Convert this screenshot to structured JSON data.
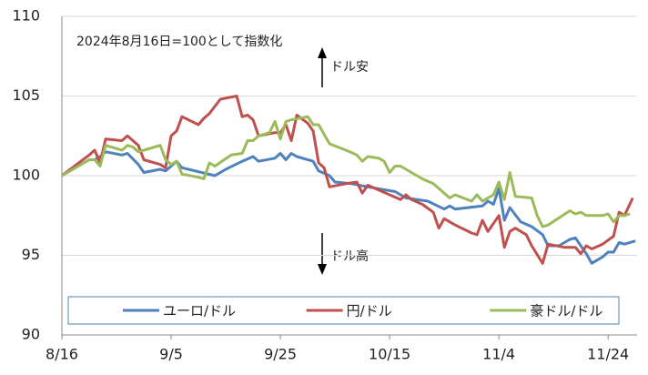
{
  "chart_data": {
    "type": "line",
    "annotations": [
      "2024年8月16日=100として指数化",
      "ドル安",
      "ドル高"
    ],
    "ylim": [
      90,
      110
    ],
    "yticks": [
      90,
      95,
      100,
      105,
      110
    ],
    "xlim": [
      0,
      105.3
    ],
    "xticks": [
      {
        "value": 0,
        "label": "8/16"
      },
      {
        "value": 20,
        "label": "9/5"
      },
      {
        "value": 40,
        "label": "9/25"
      },
      {
        "value": 60,
        "label": "10/15"
      },
      {
        "value": 80,
        "label": "11/4"
      },
      {
        "value": 100,
        "label": "11/24"
      }
    ],
    "grid": true,
    "legend": "bottom",
    "series": [
      {
        "name": "ユーロ/ドル",
        "color": "#4f81bd",
        "x": [
          0,
          5,
          6,
          7,
          8,
          11,
          12,
          14,
          15,
          18,
          19,
          20,
          21,
          22,
          28,
          30,
          33,
          35,
          36,
          39,
          40,
          41,
          42,
          43,
          46,
          47,
          49,
          50,
          53,
          56,
          61,
          63,
          67,
          70,
          71,
          72,
          77,
          78,
          79,
          80,
          81,
          82,
          84,
          86,
          88,
          89,
          91,
          93,
          94,
          96,
          97,
          99,
          100,
          101,
          102,
          103,
          105
        ],
        "values": [
          100,
          101.0,
          101.0,
          101.2,
          101.5,
          101.3,
          101.4,
          100.7,
          100.2,
          100.4,
          100.3,
          100.6,
          100.9,
          100.5,
          100.0,
          100.4,
          100.9,
          101.2,
          100.9,
          101.1,
          101.4,
          101.0,
          101.4,
          101.2,
          100.9,
          100.3,
          100.0,
          99.6,
          99.5,
          99.3,
          99.0,
          98.6,
          98.4,
          97.9,
          98.1,
          97.9,
          98.1,
          98.4,
          98.2,
          99.2,
          97.2,
          98.0,
          97.1,
          96.8,
          96.3,
          95.6,
          95.6,
          96.0,
          96.1,
          95.1,
          94.5,
          94.9,
          95.2,
          95.2,
          95.8,
          95.7,
          95.9
        ]
      },
      {
        "name": "円/ドル",
        "color": "#c0504d",
        "x": [
          0,
          5,
          6,
          7,
          8,
          11,
          12,
          13,
          14,
          15,
          18,
          19,
          20,
          21,
          22,
          25,
          26,
          27,
          29,
          32,
          33,
          34,
          35,
          36,
          39,
          40,
          41,
          42,
          43,
          45,
          46,
          47,
          48,
          49,
          52,
          54,
          55,
          56,
          60,
          62,
          63,
          64,
          66,
          68,
          69,
          70,
          72,
          75,
          76,
          77,
          78,
          80,
          81,
          82,
          83,
          85,
          86,
          88,
          89,
          92,
          94,
          95,
          96,
          97,
          99,
          101,
          102,
          103,
          104.5
        ],
        "values": [
          100,
          101.3,
          101.6,
          100.8,
          102.3,
          102.2,
          102.5,
          102.2,
          101.9,
          101.0,
          100.7,
          100.5,
          102.5,
          102.8,
          103.7,
          103.2,
          103.6,
          103.9,
          104.8,
          105.0,
          103.7,
          103.8,
          103.5,
          102.5,
          102.7,
          102.7,
          103.2,
          102.2,
          103.8,
          103.3,
          102.8,
          100.8,
          100.5,
          99.3,
          99.5,
          99.6,
          98.9,
          99.4,
          98.8,
          98.5,
          98.8,
          98.5,
          98.2,
          97.7,
          96.7,
          97.3,
          96.9,
          96.4,
          96.3,
          97.2,
          96.5,
          97.5,
          95.5,
          96.5,
          96.7,
          96.3,
          95.6,
          94.5,
          95.7,
          95.5,
          95.5,
          95.1,
          95.6,
          95.4,
          95.7,
          96.2,
          97.7,
          97.5,
          98.6
        ]
      },
      {
        "name": "豪ドル/ドル",
        "color": "#9bbb59",
        "x": [
          0,
          5,
          6,
          7,
          8,
          10,
          11,
          12,
          13,
          14,
          17,
          18,
          19,
          20,
          21,
          22,
          25,
          26,
          27,
          28,
          31,
          33,
          34,
          35,
          36,
          38,
          39,
          40,
          41,
          42,
          45,
          46,
          47,
          49,
          52,
          54,
          55,
          56,
          58,
          59,
          60,
          61,
          62,
          64,
          66,
          68,
          70,
          71,
          72,
          75,
          76,
          77,
          79,
          80,
          81,
          82,
          83,
          86,
          87,
          88,
          89,
          93,
          94,
          95,
          96,
          99,
          100,
          101,
          102,
          103,
          104
        ],
        "values": [
          100,
          101.0,
          101.0,
          100.6,
          101.9,
          101.7,
          101.6,
          101.9,
          101.8,
          101.5,
          101.8,
          101.9,
          101.0,
          100.7,
          100.9,
          100.1,
          99.9,
          99.8,
          100.8,
          100.6,
          101.3,
          101.4,
          102.2,
          102.2,
          102.5,
          102.7,
          103.4,
          102.3,
          103.4,
          103.5,
          103.7,
          103.2,
          103.2,
          102.0,
          101.6,
          101.3,
          100.9,
          101.2,
          101.1,
          100.9,
          100.2,
          100.6,
          100.6,
          100.2,
          99.8,
          99.5,
          98.9,
          98.6,
          98.8,
          98.4,
          98.8,
          98.4,
          98.8,
          99.6,
          98.5,
          100.2,
          98.7,
          98.6,
          97.5,
          96.8,
          96.9,
          97.8,
          97.6,
          97.7,
          97.5,
          97.5,
          97.6,
          97.1,
          97.5,
          97.5,
          97.6
        ]
      }
    ]
  }
}
